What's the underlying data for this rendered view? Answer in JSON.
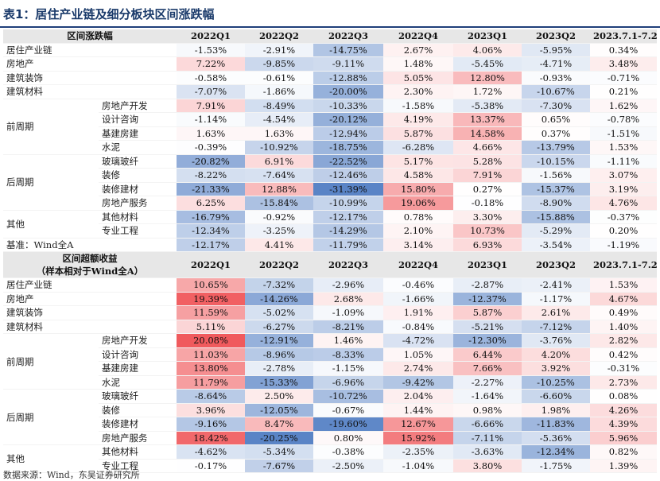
{
  "title": "表1：居住产业链及细分板块区间涨跌幅",
  "footer": "数据来源：Wind，东吴证券研究所",
  "columns": [
    "2022Q1",
    "2022Q2",
    "2022Q3",
    "2022Q4",
    "2023Q1",
    "2023Q2",
    "2023.7.1-7.21"
  ],
  "sections": [
    {
      "header": [
        "区间涨跌幅"
      ],
      "rows": [
        {
          "group": "居住产业链",
          "values": [
            "-1.53%",
            "-2.91%",
            "-14.75%",
            "2.67%",
            "4.06%",
            "-5.95%",
            "0.34%"
          ]
        },
        {
          "group": "房地产",
          "values": [
            "7.22%",
            "-9.85%",
            "-9.11%",
            "1.48%",
            "-5.45%",
            "-4.71%",
            "3.48%"
          ]
        },
        {
          "group": "建筑装饰",
          "values": [
            "-0.58%",
            "-0.61%",
            "-12.88%",
            "5.05%",
            "12.80%",
            "-0.93%",
            "-0.71%"
          ]
        },
        {
          "group": "建筑材料",
          "values": [
            "-7.07%",
            "-1.86%",
            "-20.00%",
            "2.30%",
            "1.72%",
            "-10.67%",
            "0.21%"
          ]
        },
        {
          "group": "前周期",
          "sub": "房地产开发",
          "values": [
            "7.91%",
            "-8.49%",
            "-10.33%",
            "-1.58%",
            "-5.38%",
            "-7.30%",
            "1.62%"
          ]
        },
        {
          "sub": "设计咨询",
          "values": [
            "-1.14%",
            "-4.54%",
            "-20.12%",
            "4.19%",
            "13.37%",
            "0.65%",
            "-0.78%"
          ]
        },
        {
          "sub": "基建房建",
          "values": [
            "1.63%",
            "1.63%",
            "-12.94%",
            "5.87%",
            "14.58%",
            "0.37%",
            "-1.51%"
          ]
        },
        {
          "sub": "水泥",
          "values": [
            "-0.39%",
            "-10.92%",
            "-18.75%",
            "-6.28%",
            "4.66%",
            "-13.79%",
            "1.53%"
          ]
        },
        {
          "group": "后周期",
          "sub": "玻璃玻纤",
          "values": [
            "-20.82%",
            "6.91%",
            "-22.52%",
            "5.17%",
            "5.28%",
            "-10.15%",
            "-1.11%"
          ]
        },
        {
          "sub": "装修",
          "values": [
            "-8.22%",
            "-7.64%",
            "-12.46%",
            "4.58%",
            "7.91%",
            "-1.56%",
            "3.07%"
          ]
        },
        {
          "sub": "装修建材",
          "values": [
            "-21.33%",
            "12.88%",
            "-31.39%",
            "15.80%",
            "0.27%",
            "-15.37%",
            "3.19%"
          ]
        },
        {
          "sub": "房地产服务",
          "values": [
            "6.25%",
            "-15.84%",
            "-10.99%",
            "19.06%",
            "-0.18%",
            "-8.90%",
            "4.76%"
          ]
        },
        {
          "group": "其他",
          "sub": "其他材料",
          "values": [
            "-16.79%",
            "-0.92%",
            "-12.17%",
            "0.78%",
            "3.30%",
            "-15.88%",
            "-0.37%"
          ]
        },
        {
          "sub": "专业工程",
          "values": [
            "-12.34%",
            "-3.25%",
            "-14.29%",
            "2.10%",
            "10.73%",
            "-5.29%",
            "0.20%"
          ]
        },
        {
          "group": "基准：Wind全A",
          "values": [
            "-12.17%",
            "4.41%",
            "-11.79%",
            "3.14%",
            "6.93%",
            "-3.54%",
            "-1.19%"
          ]
        }
      ]
    },
    {
      "header": [
        "区间超额收益",
        "（样本相对于Wind全A）"
      ],
      "rows": [
        {
          "group": "居住产业链",
          "values": [
            "10.65%",
            "-7.32%",
            "-2.96%",
            "-0.46%",
            "-2.87%",
            "-2.41%",
            "1.53%"
          ]
        },
        {
          "group": "房地产",
          "values": [
            "19.39%",
            "-14.26%",
            "2.68%",
            "-1.66%",
            "-12.37%",
            "-1.17%",
            "4.67%"
          ]
        },
        {
          "group": "建筑装饰",
          "values": [
            "11.59%",
            "-5.02%",
            "-1.09%",
            "1.91%",
            "5.87%",
            "2.61%",
            "0.49%"
          ]
        },
        {
          "group": "建筑材料",
          "values": [
            "5.11%",
            "-6.27%",
            "-8.21%",
            "-0.84%",
            "-5.21%",
            "-7.12%",
            "1.40%"
          ]
        },
        {
          "group": "前周期",
          "sub": "房地产开发",
          "values": [
            "20.08%",
            "-12.91%",
            "1.46%",
            "-4.72%",
            "-12.30%",
            "-3.76%",
            "2.82%"
          ]
        },
        {
          "sub": "设计咨询",
          "values": [
            "11.03%",
            "-8.96%",
            "-8.33%",
            "1.05%",
            "6.44%",
            "4.20%",
            "0.42%"
          ]
        },
        {
          "sub": "基建房建",
          "values": [
            "13.80%",
            "-2.78%",
            "-1.15%",
            "2.74%",
            "7.66%",
            "3.92%",
            "-0.31%"
          ]
        },
        {
          "sub": "水泥",
          "values": [
            "11.79%",
            "-15.33%",
            "-6.96%",
            "-9.42%",
            "-2.27%",
            "-10.25%",
            "2.73%"
          ]
        },
        {
          "group": "后周期",
          "sub": "玻璃玻纤",
          "values": [
            "-8.64%",
            "2.50%",
            "-10.72%",
            "2.04%",
            "-1.64%",
            "-6.60%",
            "0.08%"
          ]
        },
        {
          "sub": "装修",
          "values": [
            "3.96%",
            "-12.05%",
            "-0.67%",
            "1.44%",
            "0.98%",
            "1.98%",
            "4.26%"
          ]
        },
        {
          "sub": "装修建材",
          "values": [
            "-9.16%",
            "8.47%",
            "-19.60%",
            "12.67%",
            "-6.66%",
            "-11.83%",
            "4.39%"
          ]
        },
        {
          "sub": "房地产服务",
          "values": [
            "18.42%",
            "-20.25%",
            "0.80%",
            "15.92%",
            "-7.11%",
            "-5.36%",
            "5.96%"
          ]
        },
        {
          "group": "其他",
          "sub": "其他材料",
          "values": [
            "-4.62%",
            "-5.34%",
            "-0.38%",
            "-2.35%",
            "-3.63%",
            "-12.34%",
            "0.82%"
          ]
        },
        {
          "sub": "专业工程",
          "values": [
            "-0.17%",
            "-7.67%",
            "-2.50%",
            "-1.04%",
            "3.80%",
            "-1.75%",
            "1.39%"
          ]
        }
      ]
    }
  ],
  "colors": {
    "positive": "#f0595c",
    "negative": "#5a84c6",
    "header_bg": "#e7e7e7",
    "title": "#1a3a6a",
    "rule": "#1f3f7a"
  }
}
